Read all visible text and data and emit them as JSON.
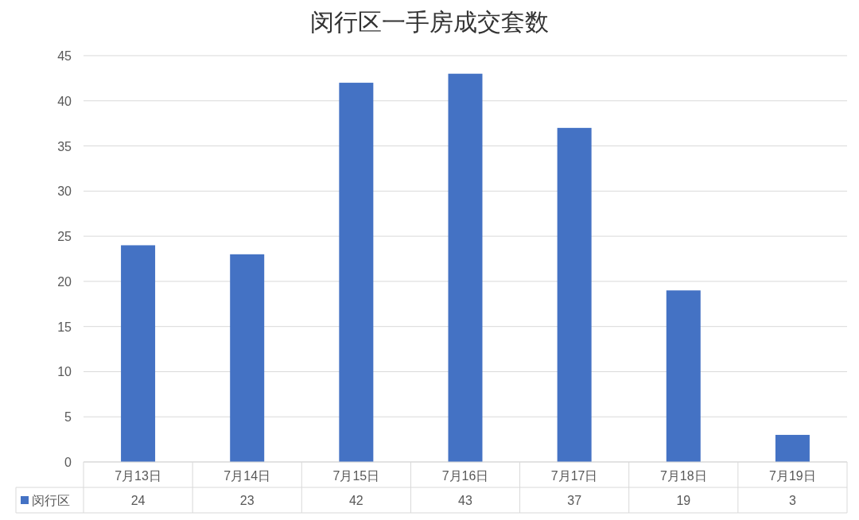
{
  "chart_data": {
    "type": "bar",
    "title": "闵行区一手房成交套数",
    "categories": [
      "7月13日",
      "7月14日",
      "7月15日",
      "7月16日",
      "7月17日",
      "7月18日",
      "7月19日"
    ],
    "series": [
      {
        "name": "闵行区",
        "color": "#4472c4",
        "values": [
          24,
          23,
          42,
          43,
          37,
          19,
          3
        ]
      }
    ],
    "ylim": [
      0,
      45
    ],
    "yticks": [
      0,
      5,
      10,
      15,
      20,
      25,
      30,
      35,
      40,
      45
    ],
    "grid": "y",
    "data_labels": true,
    "legend": "bottom"
  }
}
